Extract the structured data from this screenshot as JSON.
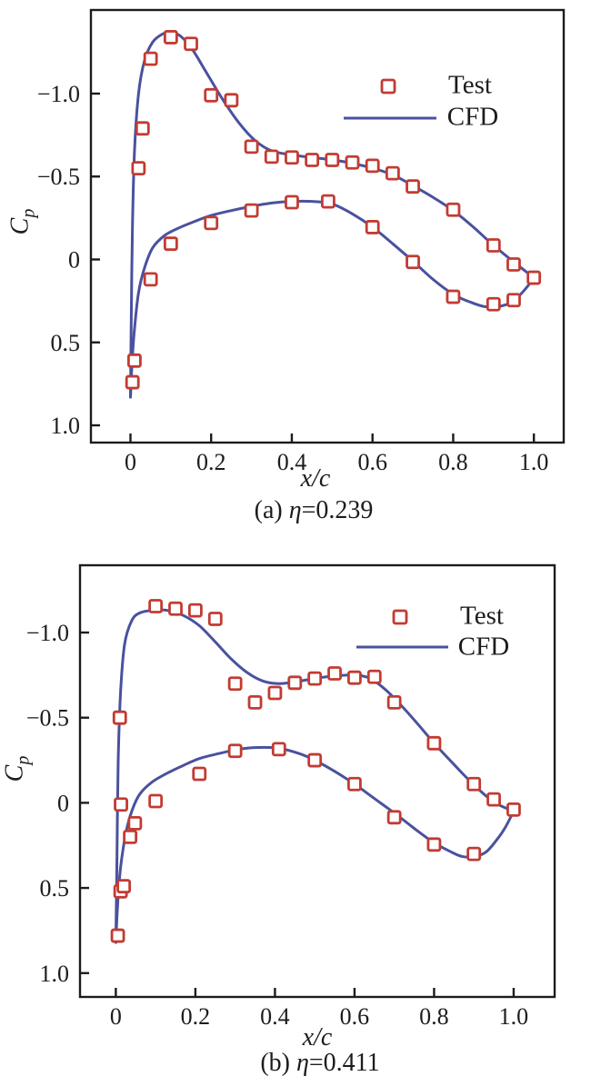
{
  "colors": {
    "test": "#C23B32",
    "cfd": "#4A519E",
    "axis": "#1C1C1C",
    "background": "#FFFFFF"
  },
  "figure": {
    "panels": [
      {
        "caption_prefix": "(a) ",
        "caption_eta": "η",
        "caption_suffix": "=0.239",
        "xlabel": "x/c",
        "ylabel_main": "C",
        "ylabel_sub": "p",
        "legend": [
          {
            "label": "Test",
            "type": "marker"
          },
          {
            "label": "CFD",
            "type": "line"
          }
        ]
      },
      {
        "caption_prefix": "(b) ",
        "caption_eta": "η",
        "caption_suffix": "=0.411",
        "xlabel": "x/c",
        "ylabel_main": "C",
        "ylabel_sub": "p",
        "legend": [
          {
            "label": "Test",
            "type": "marker"
          },
          {
            "label": "CFD",
            "type": "line"
          }
        ]
      }
    ]
  },
  "chart_data": [
    {
      "type": "scatter",
      "title": "(a) η=0.239",
      "xlabel": "x/c",
      "ylabel": "Cp",
      "y_axis_inverted": true,
      "grid": false,
      "legend_position": "upper right",
      "x_ticks": [
        0,
        0.2,
        0.4,
        0.6,
        0.8,
        1.0
      ],
      "x_tick_labels": [
        "0",
        "0.2",
        "0.4",
        "0.6",
        "0.8",
        "1.0"
      ],
      "y_ticks": [
        -1.0,
        -0.5,
        0,
        0.5,
        1.0
      ],
      "y_tick_labels": [
        "−1.0",
        "−0.5",
        "0",
        "0.5",
        "1.0"
      ],
      "xlim": [
        -0.098,
        1.074
      ],
      "ylim_top_to_bottom": [
        -1.504,
        1.104
      ],
      "series": [
        {
          "name": "Test",
          "kind": "scatter",
          "surface": "upper",
          "points": [
            [
              0.02,
              -0.55
            ],
            [
              0.03,
              -0.79
            ],
            [
              0.05,
              -1.21
            ],
            [
              0.1,
              -1.34
            ],
            [
              0.15,
              -1.3
            ],
            [
              0.2,
              -0.99
            ],
            [
              0.25,
              -0.96
            ],
            [
              0.3,
              -0.68
            ],
            [
              0.35,
              -0.62
            ],
            [
              0.4,
              -0.615
            ],
            [
              0.45,
              -0.6
            ],
            [
              0.5,
              -0.6
            ],
            [
              0.55,
              -0.585
            ],
            [
              0.6,
              -0.565
            ],
            [
              0.65,
              -0.52
            ],
            [
              0.7,
              -0.44
            ],
            [
              0.8,
              -0.3
            ],
            [
              0.9,
              -0.085
            ],
            [
              0.95,
              0.03
            ],
            [
              1.0,
              0.11
            ]
          ]
        },
        {
          "name": "Test",
          "kind": "scatter",
          "surface": "lower",
          "points": [
            [
              0.005,
              0.74
            ],
            [
              0.01,
              0.61
            ],
            [
              0.05,
              0.12
            ],
            [
              0.1,
              -0.095
            ],
            [
              0.2,
              -0.22
            ],
            [
              0.3,
              -0.295
            ],
            [
              0.4,
              -0.345
            ],
            [
              0.49,
              -0.35
            ],
            [
              0.6,
              -0.195
            ],
            [
              0.7,
              0.015
            ],
            [
              0.8,
              0.225
            ],
            [
              0.9,
              0.27
            ],
            [
              0.95,
              0.245
            ]
          ]
        },
        {
          "name": "CFD",
          "kind": "line",
          "surface": "upper",
          "points": [
            [
              0.0,
              0.83
            ],
            [
              0.002,
              0.35
            ],
            [
              0.005,
              -0.2
            ],
            [
              0.01,
              -0.65
            ],
            [
              0.02,
              -1.0
            ],
            [
              0.035,
              -1.2
            ],
            [
              0.055,
              -1.31
            ],
            [
              0.08,
              -1.36
            ],
            [
              0.1,
              -1.37
            ],
            [
              0.125,
              -1.345
            ],
            [
              0.155,
              -1.26
            ],
            [
              0.19,
              -1.12
            ],
            [
              0.23,
              -0.96
            ],
            [
              0.27,
              -0.82
            ],
            [
              0.31,
              -0.715
            ],
            [
              0.35,
              -0.655
            ],
            [
              0.4,
              -0.63
            ],
            [
              0.45,
              -0.615
            ],
            [
              0.5,
              -0.6
            ],
            [
              0.55,
              -0.58
            ],
            [
              0.6,
              -0.55
            ],
            [
              0.65,
              -0.51
            ],
            [
              0.7,
              -0.445
            ],
            [
              0.75,
              -0.375
            ],
            [
              0.8,
              -0.295
            ],
            [
              0.85,
              -0.195
            ],
            [
              0.9,
              -0.085
            ],
            [
              0.95,
              0.015
            ],
            [
              1.0,
              0.11
            ]
          ]
        },
        {
          "name": "CFD",
          "kind": "line",
          "surface": "lower",
          "points": [
            [
              0.0,
              0.83
            ],
            [
              0.004,
              0.62
            ],
            [
              0.01,
              0.42
            ],
            [
              0.02,
              0.2
            ],
            [
              0.035,
              0.05
            ],
            [
              0.055,
              -0.07
            ],
            [
              0.085,
              -0.145
            ],
            [
              0.12,
              -0.19
            ],
            [
              0.16,
              -0.23
            ],
            [
              0.2,
              -0.265
            ],
            [
              0.25,
              -0.295
            ],
            [
              0.3,
              -0.32
            ],
            [
              0.35,
              -0.34
            ],
            [
              0.4,
              -0.35
            ],
            [
              0.45,
              -0.35
            ],
            [
              0.5,
              -0.335
            ],
            [
              0.55,
              -0.275
            ],
            [
              0.6,
              -0.195
            ],
            [
              0.65,
              -0.095
            ],
            [
              0.7,
              0.01
            ],
            [
              0.75,
              0.12
            ],
            [
              0.8,
              0.21
            ],
            [
              0.84,
              0.255
            ],
            [
              0.88,
              0.285
            ],
            [
              0.92,
              0.28
            ],
            [
              0.95,
              0.25
            ],
            [
              0.98,
              0.175
            ],
            [
              1.0,
              0.11
            ]
          ]
        }
      ]
    },
    {
      "type": "scatter",
      "title": "(b) η=0.411",
      "xlabel": "x/c",
      "ylabel": "Cp",
      "y_axis_inverted": true,
      "grid": false,
      "legend_position": "upper right",
      "x_ticks": [
        0,
        0.2,
        0.4,
        0.6,
        0.8,
        1.0
      ],
      "x_tick_labels": [
        "0",
        "0.2",
        "0.4",
        "0.6",
        "0.8",
        "1.0"
      ],
      "y_ticks": [
        -1.0,
        -0.5,
        0,
        0.5,
        1.0
      ],
      "y_tick_labels": [
        "−1.0",
        "−0.5",
        "0",
        "0.5",
        "1.0"
      ],
      "xlim": [
        -0.09,
        1.103
      ],
      "ylim_top_to_bottom": [
        -1.395,
        1.14
      ],
      "series": [
        {
          "name": "Test",
          "kind": "scatter",
          "surface": "upper",
          "points": [
            [
              0.01,
              -0.5
            ],
            [
              0.1,
              -1.155
            ],
            [
              0.15,
              -1.14
            ],
            [
              0.2,
              -1.13
            ],
            [
              0.25,
              -1.08
            ],
            [
              0.3,
              -0.7
            ],
            [
              0.35,
              -0.59
            ],
            [
              0.4,
              -0.645
            ],
            [
              0.45,
              -0.705
            ],
            [
              0.5,
              -0.73
            ],
            [
              0.55,
              -0.76
            ],
            [
              0.6,
              -0.735
            ],
            [
              0.65,
              -0.74
            ],
            [
              0.7,
              -0.59
            ],
            [
              0.8,
              -0.35
            ],
            [
              0.9,
              -0.11
            ],
            [
              0.95,
              -0.02
            ],
            [
              1.0,
              0.04
            ]
          ]
        },
        {
          "name": "Test",
          "kind": "scatter",
          "surface": "lower",
          "points": [
            [
              0.005,
              0.78
            ],
            [
              0.012,
              0.52
            ],
            [
              0.02,
              0.49
            ],
            [
              0.013,
              0.01
            ],
            [
              0.036,
              0.2
            ],
            [
              0.048,
              0.12
            ],
            [
              0.1,
              -0.01
            ],
            [
              0.21,
              -0.17
            ],
            [
              0.3,
              -0.305
            ],
            [
              0.41,
              -0.315
            ],
            [
              0.5,
              -0.25
            ],
            [
              0.6,
              -0.11
            ],
            [
              0.7,
              0.085
            ],
            [
              0.8,
              0.245
            ],
            [
              0.9,
              0.3
            ]
          ]
        },
        {
          "name": "CFD",
          "kind": "line",
          "surface": "upper",
          "points": [
            [
              0.0,
              0.82
            ],
            [
              0.003,
              0.3
            ],
            [
              0.006,
              -0.25
            ],
            [
              0.012,
              -0.65
            ],
            [
              0.022,
              -0.93
            ],
            [
              0.04,
              -1.07
            ],
            [
              0.06,
              -1.115
            ],
            [
              0.09,
              -1.13
            ],
            [
              0.13,
              -1.13
            ],
            [
              0.17,
              -1.1
            ],
            [
              0.21,
              -1.04
            ],
            [
              0.25,
              -0.945
            ],
            [
              0.29,
              -0.845
            ],
            [
              0.33,
              -0.765
            ],
            [
              0.37,
              -0.715
            ],
            [
              0.41,
              -0.7
            ],
            [
              0.45,
              -0.71
            ],
            [
              0.5,
              -0.73
            ],
            [
              0.55,
              -0.745
            ],
            [
              0.6,
              -0.75
            ],
            [
              0.64,
              -0.73
            ],
            [
              0.68,
              -0.66
            ],
            [
              0.72,
              -0.565
            ],
            [
              0.76,
              -0.46
            ],
            [
              0.8,
              -0.35
            ],
            [
              0.85,
              -0.225
            ],
            [
              0.9,
              -0.105
            ],
            [
              0.95,
              -0.005
            ],
            [
              1.0,
              0.05
            ]
          ]
        },
        {
          "name": "CFD",
          "kind": "line",
          "surface": "lower",
          "points": [
            [
              0.0,
              0.82
            ],
            [
              0.005,
              0.58
            ],
            [
              0.012,
              0.38
            ],
            [
              0.025,
              0.18
            ],
            [
              0.04,
              0.05
            ],
            [
              0.06,
              -0.05
            ],
            [
              0.09,
              -0.12
            ],
            [
              0.13,
              -0.175
            ],
            [
              0.17,
              -0.22
            ],
            [
              0.21,
              -0.26
            ],
            [
              0.26,
              -0.29
            ],
            [
              0.31,
              -0.315
            ],
            [
              0.36,
              -0.325
            ],
            [
              0.41,
              -0.32
            ],
            [
              0.46,
              -0.29
            ],
            [
              0.5,
              -0.25
            ],
            [
              0.55,
              -0.185
            ],
            [
              0.6,
              -0.11
            ],
            [
              0.65,
              -0.025
            ],
            [
              0.7,
              0.06
            ],
            [
              0.75,
              0.15
            ],
            [
              0.8,
              0.235
            ],
            [
              0.84,
              0.285
            ],
            [
              0.87,
              0.315
            ],
            [
              0.9,
              0.315
            ],
            [
              0.93,
              0.29
            ],
            [
              0.96,
              0.21
            ],
            [
              0.98,
              0.14
            ],
            [
              1.0,
              0.05
            ]
          ]
        }
      ]
    }
  ]
}
